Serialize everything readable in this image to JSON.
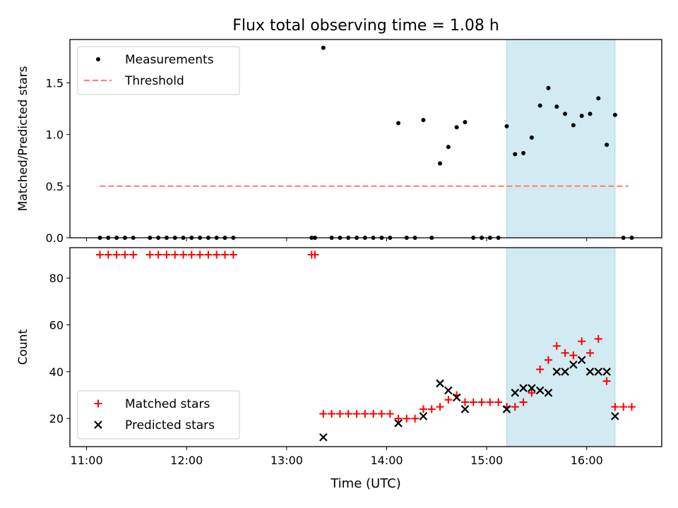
{
  "figure": {
    "title": "Flux total observing time = 1.08 h",
    "xlabel": "Time (UTC)"
  },
  "chart_data": [
    {
      "type": "scatter",
      "panel": "top",
      "ylabel": "Matched/Predicted stars",
      "xlim": [
        "10:50",
        "16:45"
      ],
      "ylim": [
        0,
        1.92
      ],
      "yticks": [
        "0.0",
        "0.5",
        "1.0",
        "1.5"
      ],
      "xticks": [
        "11:00",
        "12:00",
        "13:00",
        "14:00",
        "15:00",
        "16:00"
      ],
      "legend_position": "upper-left",
      "highlight_span": {
        "x": [
          "15:12",
          "16:17"
        ],
        "color": "#add8e6"
      },
      "series": [
        {
          "name": "Measurements",
          "color": "#000000",
          "marker": "dot",
          "x": [
            "11:08",
            "11:13",
            "11:18",
            "11:23",
            "11:28",
            "11:38",
            "11:43",
            "11:48",
            "11:53",
            "11:58",
            "12:03",
            "12:08",
            "12:13",
            "12:18",
            "12:23",
            "12:28",
            "13:15",
            "13:17",
            "13:22",
            "13:27",
            "13:32",
            "13:37",
            "13:42",
            "13:47",
            "13:52",
            "13:57",
            "14:02",
            "14:07",
            "14:12",
            "14:17",
            "14:22",
            "14:27",
            "14:32",
            "14:37",
            "14:42",
            "14:47",
            "14:52",
            "14:57",
            "15:02",
            "15:07",
            "15:12",
            "15:17",
            "15:22",
            "15:27",
            "15:32",
            "15:37",
            "15:42",
            "15:47",
            "15:52",
            "15:57",
            "16:02",
            "16:07",
            "16:12",
            "16:17",
            "16:22",
            "16:27"
          ],
          "y": [
            0.0,
            0.0,
            0.0,
            0.0,
            0.0,
            0.0,
            0.0,
            0.0,
            0.0,
            0.0,
            0.0,
            0.0,
            0.0,
            0.0,
            0.0,
            0.0,
            0.0,
            0.0,
            1.84,
            0.0,
            0.0,
            0.0,
            0.0,
            0.0,
            0.0,
            0.0,
            0.0,
            1.11,
            0.0,
            0.0,
            1.14,
            0.0,
            0.72,
            0.88,
            1.07,
            1.12,
            0.0,
            0.0,
            0.0,
            0.0,
            1.08,
            0.81,
            0.82,
            0.97,
            1.28,
            1.45,
            1.27,
            1.2,
            1.09,
            1.18,
            1.2,
            1.35,
            0.9,
            1.19,
            0.0,
            0.0
          ]
        },
        {
          "name": "Threshold",
          "color": "#ff7f7f",
          "style": "dashed",
          "x": [
            "11:08",
            "16:25"
          ],
          "y": [
            0.5,
            0.5
          ]
        }
      ]
    },
    {
      "type": "scatter",
      "panel": "bottom",
      "ylabel": "Count",
      "xlim": [
        "10:50",
        "16:45"
      ],
      "ylim": [
        8,
        93
      ],
      "yticks": [
        "20",
        "40",
        "60",
        "80"
      ],
      "xticks": [
        "11:00",
        "12:00",
        "13:00",
        "14:00",
        "15:00",
        "16:00"
      ],
      "legend_position": "lower-left",
      "highlight_span": {
        "x": [
          "15:12",
          "16:17"
        ],
        "color": "#add8e6"
      },
      "series": [
        {
          "name": "Matched stars",
          "color": "#ff0000",
          "marker": "plus",
          "x": [
            "11:08",
            "11:13",
            "11:18",
            "11:23",
            "11:28",
            "11:38",
            "11:43",
            "11:48",
            "11:53",
            "11:58",
            "12:03",
            "12:08",
            "12:13",
            "12:18",
            "12:23",
            "12:28",
            "13:15",
            "13:17",
            "13:22",
            "13:27",
            "13:32",
            "13:37",
            "13:42",
            "13:47",
            "13:52",
            "13:57",
            "14:02",
            "14:07",
            "14:12",
            "14:17",
            "14:22",
            "14:27",
            "14:32",
            "14:37",
            "14:42",
            "14:47",
            "14:52",
            "14:57",
            "15:02",
            "15:07",
            "15:12",
            "15:17",
            "15:22",
            "15:27",
            "15:32",
            "15:37",
            "15:42",
            "15:47",
            "15:52",
            "15:57",
            "16:02",
            "16:07",
            "16:12",
            "16:17",
            "16:22",
            "16:27"
          ],
          "y": [
            90,
            90,
            90,
            90,
            90,
            90,
            90,
            90,
            90,
            90,
            90,
            90,
            90,
            90,
            90,
            90,
            90,
            90,
            22,
            22,
            22,
            22,
            22,
            22,
            22,
            22,
            22,
            20,
            20,
            20,
            24,
            24,
            25,
            28,
            30,
            27,
            27,
            27,
            27,
            27,
            25,
            25,
            27,
            31,
            41,
            45,
            51,
            48,
            47,
            53,
            48,
            54,
            36,
            25,
            25,
            25
          ]
        },
        {
          "name": "Predicted stars",
          "color": "#000000",
          "marker": "x",
          "x": [
            "13:22",
            "14:07",
            "14:22",
            "14:32",
            "14:37",
            "14:42",
            "14:47",
            "15:12",
            "15:17",
            "15:22",
            "15:27",
            "15:32",
            "15:37",
            "15:42",
            "15:47",
            "15:52",
            "15:57",
            "16:02",
            "16:07",
            "16:12",
            "16:17"
          ],
          "y": [
            12,
            18,
            21,
            35,
            32,
            29,
            24,
            24,
            31,
            33,
            33,
            32,
            31,
            40,
            40,
            43,
            45,
            40,
            40,
            40,
            21
          ]
        }
      ]
    }
  ]
}
